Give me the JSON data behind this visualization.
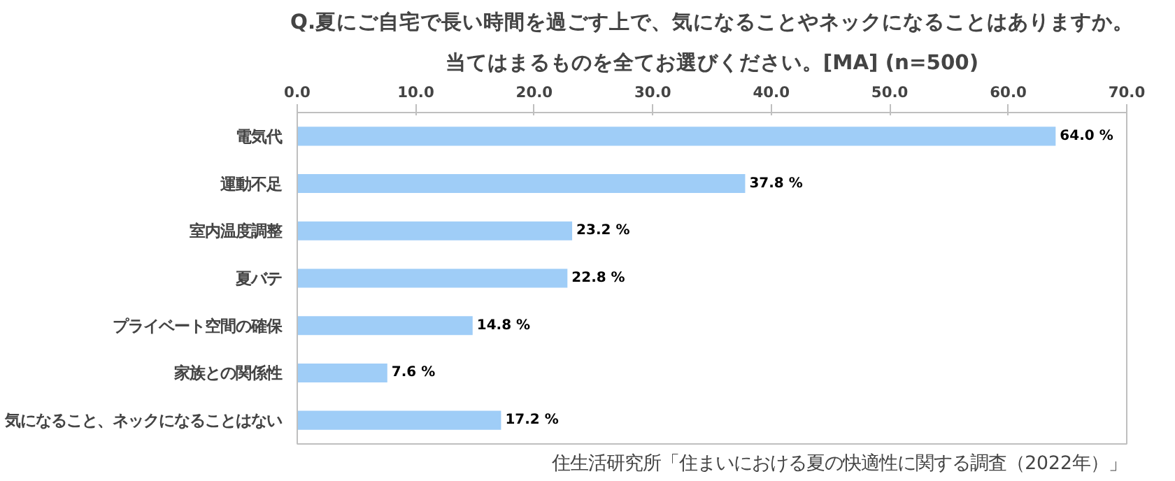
{
  "chart_data": {
    "type": "bar",
    "orientation": "horizontal",
    "title": "Q.夏にご自宅で長い時間を過ごす上で、気になることやネックになることはありますか。",
    "subtitle": "当てはまるものを全てお選びください。[MA] (n=500)",
    "categories": [
      "電気代",
      "運動不足",
      "室内温度調整",
      "夏バテ",
      "プライベート空間の確保",
      "家族との関係性",
      "気になること、ネックになることはない"
    ],
    "values": [
      64.0,
      37.8,
      23.2,
      22.8,
      14.8,
      7.6,
      17.2
    ],
    "value_labels": [
      "64.0 %",
      "37.8 %",
      "23.2 %",
      "22.8 %",
      "14.8 %",
      "7.6 %",
      "17.2 %"
    ],
    "color": "#9fcdf7",
    "xlim": [
      0,
      70
    ],
    "xticks": [
      {
        "value": 0,
        "label": "0.0"
      },
      {
        "value": 10,
        "label": "10.0"
      },
      {
        "value": 20,
        "label": "20.0"
      },
      {
        "value": 30,
        "label": "30.0"
      },
      {
        "value": 40,
        "label": "40.0"
      },
      {
        "value": 50,
        "label": "50.0"
      },
      {
        "value": 60,
        "label": "60.0"
      },
      {
        "value": 70,
        "label": "70.0"
      }
    ],
    "grid": false,
    "annotations": [
      "住生活研究所「住まいにおける夏の快適性に関する調査（2022年）」"
    ]
  }
}
